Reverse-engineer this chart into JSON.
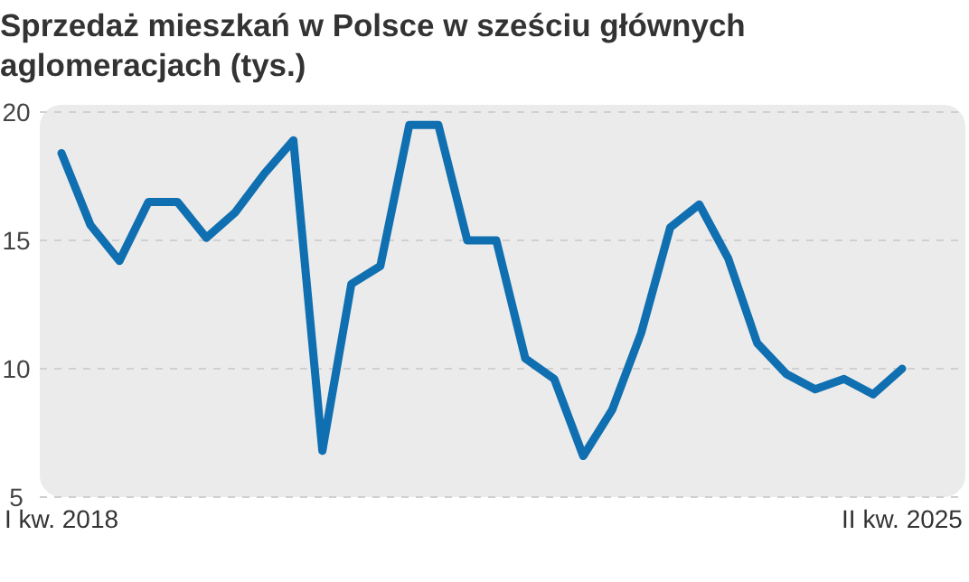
{
  "chart_data": {
    "type": "line",
    "title": "Sprzedaż mieszkań w Polsce w sześciu głównych aglomeracjach (tys.)",
    "categories": [
      "I kw. 2018",
      null,
      null,
      null,
      null,
      null,
      null,
      null,
      null,
      null,
      null,
      null,
      null,
      null,
      null,
      null,
      null,
      null,
      null,
      null,
      null,
      null,
      null,
      null,
      null,
      null,
      null,
      null,
      null,
      "II kw. 2025"
    ],
    "series": [
      {
        "color": "#0f6fb0",
        "values": [
          18.4,
          15.6,
          14.2,
          16.5,
          16.5,
          15.1,
          16.1,
          17.6,
          18.9,
          6.8,
          13.3,
          14.0,
          19.5,
          19.5,
          15.0,
          15.0,
          10.4,
          9.6,
          6.6,
          8.4,
          11.4,
          15.5,
          16.4,
          14.3,
          11.0,
          9.8,
          9.2,
          9.6,
          9.0,
          10.0
        ]
      }
    ],
    "ylim": [
      5,
      20
    ],
    "yticks": [
      5,
      10,
      15,
      20
    ],
    "grid": "y",
    "marker": "none",
    "line_style": "solid"
  }
}
